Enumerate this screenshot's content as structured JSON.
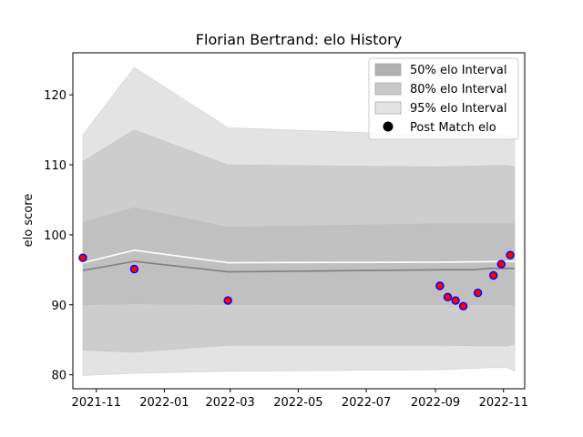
{
  "chart_data": {
    "type": "line",
    "title": "Florian Bertrand: elo History",
    "xlabel": "",
    "ylabel": "elo score",
    "xlim": [
      "2021-10-11",
      "2022-11-20"
    ],
    "ylim": [
      78,
      126
    ],
    "xticks": [
      "2021-11",
      "2022-01",
      "2022-03",
      "2022-05",
      "2022-07",
      "2022-09",
      "2022-11"
    ],
    "yticks": [
      80,
      90,
      100,
      110,
      120
    ],
    "grid": false,
    "legend_position": "top-right",
    "legend": [
      {
        "label": "50% elo Interval",
        "kind": "patch",
        "color": "#b0b0b0"
      },
      {
        "label": "80% elo Interval",
        "kind": "patch",
        "color": "#c8c8c8"
      },
      {
        "label": "95% elo Interval",
        "kind": "patch",
        "color": "#e3e3e3"
      },
      {
        "label": "Post Match elo",
        "kind": "marker",
        "color": "#000000"
      }
    ],
    "bands": [
      {
        "name": "95% elo Interval",
        "color": "#e3e3e3",
        "points": [
          {
            "x": "2021-10-20",
            "lo": 79.9,
            "hi": 114.3
          },
          {
            "x": "2021-12-05",
            "lo": 80.2,
            "hi": 123.9
          },
          {
            "x": "2022-02-27",
            "lo": 80.5,
            "hi": 115.3
          },
          {
            "x": "2022-09-05",
            "lo": 80.7,
            "hi": 114.2
          },
          {
            "x": "2022-10-20",
            "lo": 81.0,
            "hi": 114.2
          },
          {
            "x": "2022-11-05",
            "lo": 81.0,
            "hi": 114.2
          },
          {
            "x": "2022-11-11",
            "lo": 80.5,
            "hi": 114.0
          }
        ]
      },
      {
        "name": "80% elo Interval",
        "color": "#cdcdcd",
        "points": [
          {
            "x": "2021-10-20",
            "lo": 83.5,
            "hi": 110.5
          },
          {
            "x": "2021-12-05",
            "lo": 83.2,
            "hi": 115.0
          },
          {
            "x": "2022-02-27",
            "lo": 84.2,
            "hi": 110.0
          },
          {
            "x": "2022-09-05",
            "lo": 84.2,
            "hi": 109.7
          },
          {
            "x": "2022-10-20",
            "lo": 84.1,
            "hi": 109.9
          },
          {
            "x": "2022-11-05",
            "lo": 84.1,
            "hi": 109.9
          },
          {
            "x": "2022-11-11",
            "lo": 84.4,
            "hi": 109.7
          }
        ]
      },
      {
        "name": "50% elo Interval",
        "color": "#c0c0c0",
        "points": [
          {
            "x": "2021-10-20",
            "lo": 90.0,
            "hi": 101.8
          },
          {
            "x": "2021-12-05",
            "lo": 90.1,
            "hi": 103.9
          },
          {
            "x": "2022-02-27",
            "lo": 90.0,
            "hi": 101.1
          },
          {
            "x": "2022-09-05",
            "lo": 90.0,
            "hi": 101.6
          },
          {
            "x": "2022-10-20",
            "lo": 90.0,
            "hi": 101.6
          },
          {
            "x": "2022-11-11",
            "lo": 90.0,
            "hi": 101.6
          }
        ]
      }
    ],
    "series": [
      {
        "name": "",
        "color": "#ffffff",
        "values": [
          {
            "x": "2021-10-20",
            "y": 96.0
          },
          {
            "x": "2021-12-05",
            "y": 97.8
          },
          {
            "x": "2022-02-27",
            "y": 96.0
          },
          {
            "x": "2022-09-05",
            "y": 96.1
          },
          {
            "x": "2022-11-11",
            "y": 96.2
          }
        ]
      },
      {
        "name": "",
        "color": "#808080",
        "values": [
          {
            "x": "2021-10-20",
            "y": 94.9
          },
          {
            "x": "2021-12-05",
            "y": 96.2
          },
          {
            "x": "2022-02-27",
            "y": 94.7
          },
          {
            "x": "2022-09-05",
            "y": 95.0
          },
          {
            "x": "2022-10-05",
            "y": 95.0
          },
          {
            "x": "2022-10-20",
            "y": 95.2
          },
          {
            "x": "2022-11-11",
            "y": 95.2
          }
        ]
      }
    ],
    "points": {
      "name": "Post Match elo",
      "fill": "#ff0000",
      "stroke": "#0000ff",
      "values": [
        {
          "x": "2021-10-20",
          "y": 96.7
        },
        {
          "x": "2021-12-05",
          "y": 95.1
        },
        {
          "x": "2022-02-27",
          "y": 90.6
        },
        {
          "x": "2022-09-05",
          "y": 92.7
        },
        {
          "x": "2022-09-12",
          "y": 91.1
        },
        {
          "x": "2022-09-19",
          "y": 90.6
        },
        {
          "x": "2022-09-26",
          "y": 89.8
        },
        {
          "x": "2022-10-09",
          "y": 91.7
        },
        {
          "x": "2022-10-23",
          "y": 94.2
        },
        {
          "x": "2022-10-30",
          "y": 95.8
        },
        {
          "x": "2022-11-07",
          "y": 97.1
        }
      ]
    }
  }
}
